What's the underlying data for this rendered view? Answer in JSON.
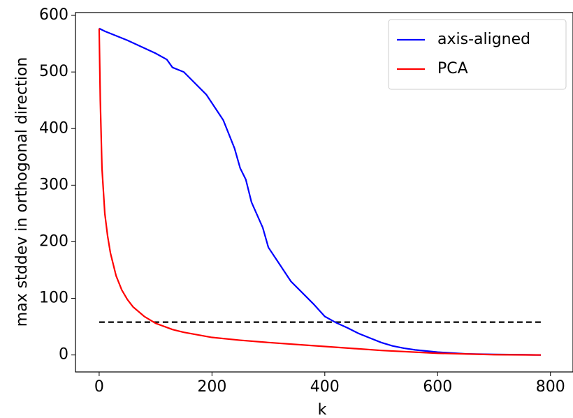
{
  "chart_data": {
    "type": "line",
    "xlabel": "k",
    "ylabel": "max stddev in orthogonal direction",
    "xlim": [
      -42,
      840
    ],
    "ylim": [
      -30,
      605
    ],
    "xticks": [
      0,
      200,
      400,
      600,
      800
    ],
    "yticks": [
      0,
      100,
      200,
      300,
      400,
      500,
      600
    ],
    "legend": "upper right",
    "series": [
      {
        "name": "axis-aligned",
        "color": "#0000ff",
        "x": [
          0,
          10,
          50,
          100,
          120,
          130,
          150,
          170,
          190,
          200,
          220,
          240,
          250,
          260,
          270,
          290,
          300,
          320,
          340,
          360,
          380,
          400,
          420,
          440,
          460,
          480,
          500,
          520,
          540,
          560,
          600,
          650,
          700,
          783
        ],
        "values": [
          577,
          572,
          556,
          533,
          522,
          508,
          500,
          480,
          460,
          445,
          415,
          365,
          330,
          310,
          270,
          225,
          190,
          160,
          130,
          110,
          90,
          68,
          57,
          48,
          38,
          30,
          22,
          16,
          12,
          9,
          5,
          2,
          1,
          0
        ]
      },
      {
        "name": "PCA",
        "color": "#ff0000",
        "x": [
          0,
          2,
          5,
          10,
          15,
          20,
          30,
          40,
          50,
          60,
          80,
          100,
          130,
          150,
          200,
          250,
          300,
          400,
          500,
          600,
          700,
          783
        ],
        "values": [
          577,
          450,
          330,
          250,
          210,
          180,
          140,
          115,
          98,
          85,
          68,
          56,
          45,
          40,
          31,
          26,
          22,
          15,
          8,
          3,
          0.5,
          0
        ]
      }
    ],
    "threshold": {
      "color": "#000000",
      "x": [
        0,
        783
      ],
      "values": [
        58,
        58
      ]
    }
  }
}
